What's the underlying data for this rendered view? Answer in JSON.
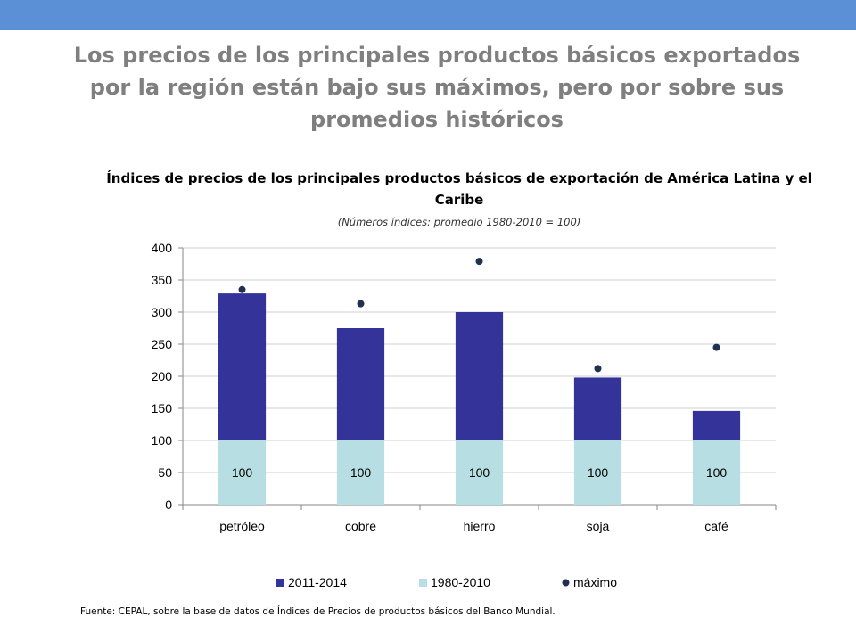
{
  "slide": {
    "title": "Los precios de los principales productos básicos exportados por la región están bajo sus máximos, pero por sobre sus promedios históricos",
    "source": "Fuente: CEPAL, sobre la base de  datos de Índices de Precios de productos básicos del Banco Mundial.",
    "bar_color": "#5b8fd6"
  },
  "chart_data": {
    "type": "bar",
    "stacked": true,
    "title": "Índices de precios de los principales productos básicos de exportación de América Latina y el Caribe",
    "subtitle": "(Números índices: promedio 1980-2010 = 100)",
    "categories": [
      "petróleo",
      "cobre",
      "hierro",
      "soja",
      "café"
    ],
    "series": [
      {
        "name": "1980-2010",
        "kind": "bar",
        "color": "#b7dfe3",
        "values": [
          100,
          100,
          100,
          100,
          100
        ],
        "data_labels": [
          "100",
          "100",
          "100",
          "100",
          "100"
        ]
      },
      {
        "name": "2011-2014",
        "kind": "bar",
        "color": "#333399",
        "values": [
          229,
          175,
          200,
          98,
          46
        ]
      },
      {
        "name": "máximo",
        "kind": "marker",
        "color": "#1f3050",
        "values": [
          335,
          313,
          379,
          212,
          245
        ]
      }
    ],
    "legend_order": [
      "2011-2014",
      "1980-2010",
      "máximo"
    ],
    "ylim": [
      0,
      400
    ],
    "yticks": [
      "0",
      "50",
      "100",
      "150",
      "200",
      "250",
      "300",
      "350",
      "400"
    ],
    "grid": true,
    "legend_position": "bottom"
  }
}
